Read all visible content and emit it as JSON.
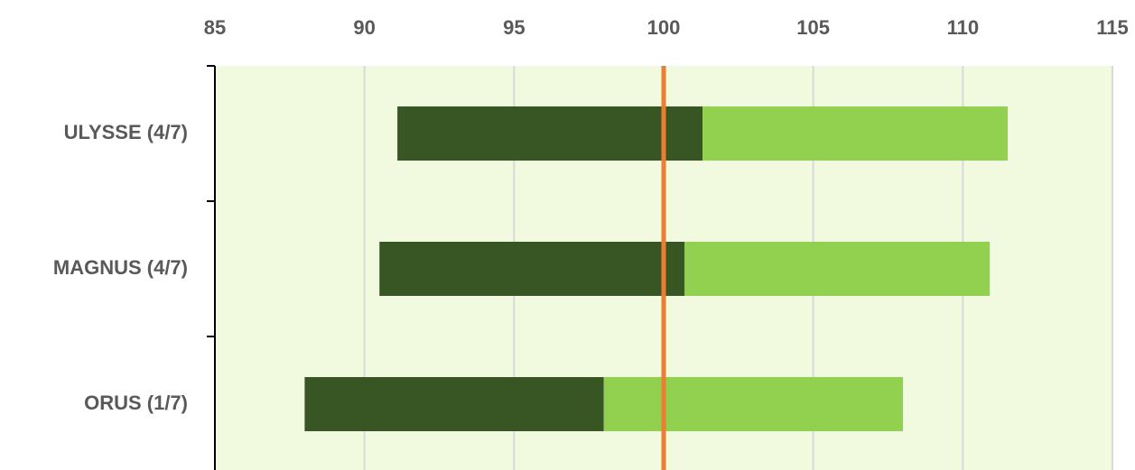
{
  "chart_data": {
    "type": "range_bar",
    "categories": [
      "ULYSSE (4/7)",
      "MAGNUS (4/7)",
      "ORUS (1/7)"
    ],
    "start": [
      91.1,
      90.5,
      88
    ],
    "split": [
      101.3,
      100.7,
      98
    ],
    "end": [
      111.5,
      110.9,
      108
    ],
    "colors": [
      "#375623",
      "#92d050"
    ],
    "reference_line": {
      "value": 100,
      "color": "#ed7d31"
    },
    "xlim": [
      85,
      115
    ],
    "xticks": [
      85,
      90,
      95,
      100,
      105,
      110,
      115
    ],
    "grid": true
  }
}
